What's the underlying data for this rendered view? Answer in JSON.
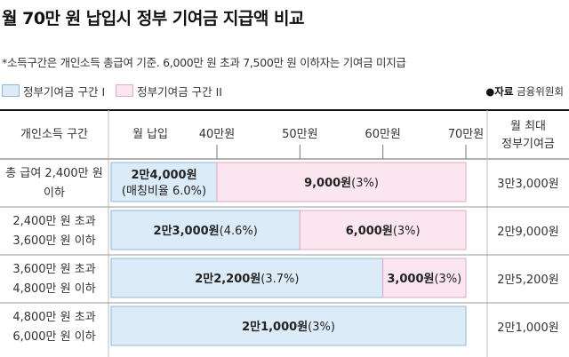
{
  "title": "월 70만 원 납입시 정부 기여금 지급액 비교",
  "subtitle": "*소득구간은 개인소득 총급여 기준. 6,000만 원 초과 7,500만 원 이하자는 기여금 미지급",
  "source": {
    "prefix": "●자료",
    "name": "금융위원회"
  },
  "colors": {
    "tier1": "#dcebf8",
    "tier2": "#fbe6ef",
    "tier1_border": "#8fb7da",
    "tier2_border": "#e2a9c0",
    "header_line": "#111111",
    "row_line": "#9a9a9a"
  },
  "legend": [
    {
      "label": "정부기여금 구간 I",
      "color": "#dcebf8"
    },
    {
      "label": "정부기여금 구간 II",
      "color": "#fbe6ef"
    }
  ],
  "headers": {
    "income": "개인소득 구간",
    "payment": "월 납입",
    "max_line1": "월 최대",
    "max_line2": "정부기여금"
  },
  "chart_data": {
    "type": "bar",
    "orientation": "horizontal-stacked",
    "x_unit": "만원",
    "xlim": [
      0,
      70
    ],
    "ticks": [
      {
        "value": 40,
        "label": "40만원"
      },
      {
        "value": 50,
        "label": "50만원"
      },
      {
        "value": 60,
        "label": "60만원"
      },
      {
        "value": 70,
        "label": "70만원"
      }
    ],
    "rows": [
      {
        "category_line1": "총 급여 2,400만 원",
        "category_line2": "이하",
        "max_contribution": "3만3,000원",
        "segments": [
          {
            "tier": 1,
            "start": 0,
            "end": 40,
            "amount": "2만4,000원",
            "rate": "(매칭비율 6.0%)"
          },
          {
            "tier": 2,
            "start": 40,
            "end": 70,
            "amount": "9,000원",
            "rate": "(3%)"
          }
        ]
      },
      {
        "category_line1": "2,400만 원 초과",
        "category_line2": "3,600만 원 이하",
        "max_contribution": "2만9,000원",
        "segments": [
          {
            "tier": 1,
            "start": 0,
            "end": 50,
            "amount": "2만3,000원",
            "rate": "(4.6%)"
          },
          {
            "tier": 2,
            "start": 50,
            "end": 70,
            "amount": "6,000원",
            "rate": "(3%)"
          }
        ]
      },
      {
        "category_line1": "3,600만 원 초과",
        "category_line2": "4,800만 원 이하",
        "max_contribution": "2만5,200원",
        "segments": [
          {
            "tier": 1,
            "start": 0,
            "end": 60,
            "amount": "2만2,200원",
            "rate": "(3.7%)"
          },
          {
            "tier": 2,
            "start": 60,
            "end": 70,
            "amount": "3,000원",
            "rate": "(3%)"
          }
        ]
      },
      {
        "category_line1": "4,800만 원 초과",
        "category_line2": "6,000만 원 이하",
        "max_contribution": "2만1,000원",
        "segments": [
          {
            "tier": 1,
            "start": 0,
            "end": 70,
            "amount": "2만1,000원",
            "rate": "(3%)"
          }
        ]
      }
    ]
  }
}
